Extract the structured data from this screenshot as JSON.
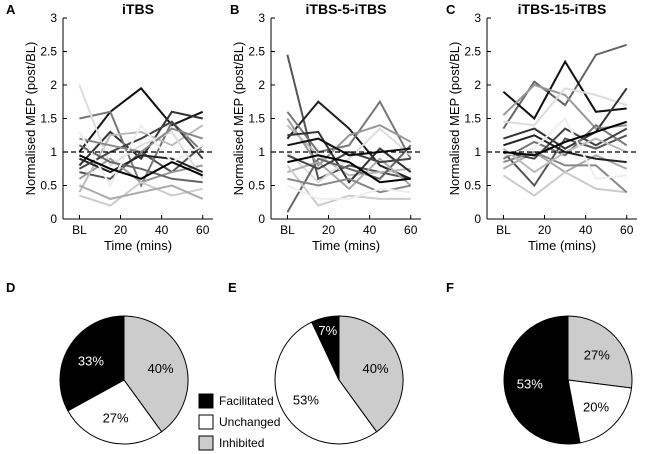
{
  "chart_data": {
    "line_panels": [
      {
        "letter": "A",
        "title": "iTBS",
        "type": "line",
        "xlabel": "Time (mins)",
        "ylabel": "Normalised MEP (post/BL)",
        "x": [
          0,
          15,
          30,
          45,
          60
        ],
        "x_ticks": [
          "BL",
          "20",
          "40",
          "60"
        ],
        "x_tick_values": [
          0,
          20,
          40,
          60
        ],
        "y_ticks": [
          "0",
          "0.5",
          "1",
          "1.5",
          "2",
          "2.5",
          "3"
        ],
        "y_tick_values": [
          0,
          0.5,
          1,
          1.5,
          2,
          2.5,
          3
        ],
        "xlim": [
          -8,
          65
        ],
        "ylim": [
          0,
          3
        ],
        "reference_line": 1,
        "series": [
          {
            "name": "s1",
            "color": "#111111",
            "values": [
              1.0,
              1.6,
              1.95,
              1.4,
              1.6
            ]
          },
          {
            "name": "s2",
            "color": "#333333",
            "values": [
              0.8,
              1.3,
              0.9,
              1.6,
              1.5
            ]
          },
          {
            "name": "s3",
            "color": "#555555",
            "values": [
              0.7,
              0.6,
              1.0,
              0.7,
              1.1
            ]
          },
          {
            "name": "s4",
            "color": "#777777",
            "values": [
              1.5,
              1.6,
              0.5,
              1.45,
              1.0
            ]
          },
          {
            "name": "s5",
            "color": "#999999",
            "values": [
              0.6,
              0.9,
              0.55,
              0.7,
              0.8
            ]
          },
          {
            "name": "s6",
            "color": "#bbbbbb",
            "values": [
              0.4,
              1.25,
              1.3,
              1.1,
              1.4
            ]
          },
          {
            "name": "s7",
            "color": "#cccccc",
            "values": [
              0.35,
              0.2,
              0.55,
              0.35,
              0.45
            ]
          },
          {
            "name": "s8",
            "color": "#dddddd",
            "values": [
              2.0,
              0.8,
              1.1,
              1.3,
              0.6
            ]
          },
          {
            "name": "s9",
            "color": "#222222",
            "values": [
              0.9,
              0.7,
              0.95,
              0.9,
              0.7
            ]
          },
          {
            "name": "s10",
            "color": "#666666",
            "values": [
              1.1,
              0.85,
              0.75,
              0.6,
              0.55
            ]
          },
          {
            "name": "s11",
            "color": "#aaaaaa",
            "values": [
              0.5,
              0.3,
              0.4,
              0.5,
              0.3
            ]
          },
          {
            "name": "s12",
            "color": "#444444",
            "values": [
              0.75,
              1.0,
              1.2,
              1.45,
              0.9
            ]
          },
          {
            "name": "s13",
            "color": "#888888",
            "values": [
              1.2,
              1.1,
              1.0,
              1.35,
              1.2
            ]
          },
          {
            "name": "s14",
            "color": "#eeeeee",
            "values": [
              1.3,
              0.5,
              1.4,
              0.85,
              1.1
            ]
          },
          {
            "name": "s15",
            "color": "#000000",
            "values": [
              0.95,
              0.75,
              0.6,
              0.85,
              0.65
            ]
          }
        ]
      },
      {
        "letter": "B",
        "title": "iTBS-5-iTBS",
        "type": "line",
        "xlabel": "Time (mins)",
        "ylabel": "Normalised MEP (post/BL)",
        "x": [
          0,
          15,
          30,
          45,
          60
        ],
        "x_ticks": [
          "BL",
          "20",
          "40",
          "60"
        ],
        "x_tick_values": [
          0,
          20,
          40,
          60
        ],
        "y_ticks": [
          "0",
          "0.5",
          "1",
          "1.5",
          "2",
          "2.5",
          "3"
        ],
        "y_tick_values": [
          0,
          0.5,
          1,
          1.5,
          2,
          2.5,
          3
        ],
        "xlim": [
          -8,
          65
        ],
        "ylim": [
          0,
          3
        ],
        "reference_line": 1,
        "series": [
          {
            "name": "s1",
            "color": "#555555",
            "values": [
              2.45,
              0.6,
              0.8,
              0.7,
              0.6
            ]
          },
          {
            "name": "s2",
            "color": "#222222",
            "values": [
              1.2,
              1.75,
              1.35,
              0.8,
              0.6
            ]
          },
          {
            "name": "s3",
            "color": "#777777",
            "values": [
              1.6,
              1.0,
              1.1,
              1.75,
              0.9
            ]
          },
          {
            "name": "s4",
            "color": "#999999",
            "values": [
              1.5,
              0.8,
              1.25,
              1.4,
              1.15
            ]
          },
          {
            "name": "s5",
            "color": "#bbbbbb",
            "values": [
              1.4,
              0.95,
              0.65,
              0.7,
              0.75
            ]
          },
          {
            "name": "s6",
            "color": "#dddddd",
            "values": [
              1.0,
              0.55,
              0.9,
              1.35,
              0.95
            ]
          },
          {
            "name": "s7",
            "color": "#333333",
            "values": [
              1.25,
              1.3,
              0.55,
              1.05,
              0.7
            ]
          },
          {
            "name": "s8",
            "color": "#666666",
            "values": [
              0.1,
              0.9,
              0.75,
              0.6,
              1.1
            ]
          },
          {
            "name": "s9",
            "color": "#aaaaaa",
            "values": [
              0.7,
              0.85,
              0.45,
              0.9,
              0.5
            ]
          },
          {
            "name": "s10",
            "color": "#cccccc",
            "values": [
              0.8,
              0.2,
              0.35,
              0.3,
              0.3
            ]
          },
          {
            "name": "s11",
            "color": "#444444",
            "values": [
              0.95,
              0.75,
              1.0,
              0.85,
              0.9
            ]
          },
          {
            "name": "s12",
            "color": "#888888",
            "values": [
              0.6,
              0.5,
              0.6,
              0.4,
              0.5
            ]
          },
          {
            "name": "s13",
            "color": "#111111",
            "values": [
              1.1,
              1.2,
              0.95,
              1.0,
              1.05
            ]
          },
          {
            "name": "s14",
            "color": "#eeeeee",
            "values": [
              0.5,
              0.3,
              0.3,
              0.45,
              0.4
            ]
          },
          {
            "name": "s15",
            "color": "#000000",
            "values": [
              0.85,
              0.95,
              0.85,
              0.55,
              0.6
            ]
          }
        ]
      },
      {
        "letter": "C",
        "title": "iTBS-15-iTBS",
        "type": "line",
        "xlabel": "Time (mins)",
        "ylabel": "Normalised MEP (post/BL)",
        "x": [
          0,
          15,
          30,
          45,
          60
        ],
        "x_ticks": [
          "BL",
          "20",
          "40",
          "60"
        ],
        "x_tick_values": [
          0,
          20,
          40,
          60
        ],
        "y_ticks": [
          "0",
          "0.5",
          "1",
          "1.5",
          "2",
          "2.5",
          "3"
        ],
        "y_tick_values": [
          0,
          0.5,
          1,
          1.5,
          2,
          2.5,
          3
        ],
        "xlim": [
          -8,
          65
        ],
        "ylim": [
          0,
          3
        ],
        "reference_line": 1,
        "series": [
          {
            "name": "s1",
            "color": "#666666",
            "values": [
              1.35,
              2.05,
              1.7,
              2.45,
              2.6
            ]
          },
          {
            "name": "s2",
            "color": "#111111",
            "values": [
              1.9,
              1.5,
              2.35,
              1.6,
              1.65
            ]
          },
          {
            "name": "s3",
            "color": "#999999",
            "values": [
              1.55,
              2.0,
              1.85,
              1.35,
              1.4
            ]
          },
          {
            "name": "s4",
            "color": "#dddddd",
            "values": [
              1.45,
              1.4,
              1.95,
              1.85,
              1.7
            ]
          },
          {
            "name": "s5",
            "color": "#333333",
            "values": [
              1.2,
              1.35,
              1.05,
              1.3,
              1.95
            ]
          },
          {
            "name": "s6",
            "color": "#555555",
            "values": [
              1.0,
              0.5,
              1.2,
              1.05,
              1.25
            ]
          },
          {
            "name": "s7",
            "color": "#777777",
            "values": [
              0.9,
              1.15,
              0.95,
              1.4,
              1.1
            ]
          },
          {
            "name": "s8",
            "color": "#aaaaaa",
            "values": [
              0.75,
              1.0,
              0.7,
              0.95,
              0.75
            ]
          },
          {
            "name": "s9",
            "color": "#cccccc",
            "values": [
              0.65,
              0.35,
              0.7,
              0.45,
              0.4
            ]
          },
          {
            "name": "s10",
            "color": "#444444",
            "values": [
              1.0,
              0.9,
              1.35,
              1.1,
              1.35
            ]
          },
          {
            "name": "s11",
            "color": "#888888",
            "values": [
              0.85,
              1.0,
              0.8,
              0.8,
              0.4
            ]
          },
          {
            "name": "s12",
            "color": "#bbbbbb",
            "values": [
              1.05,
              0.7,
              1.0,
              1.2,
              1.0
            ]
          },
          {
            "name": "s13",
            "color": "#222222",
            "values": [
              1.1,
              1.25,
              1.0,
              0.9,
              0.85
            ]
          },
          {
            "name": "s14",
            "color": "#eeeeee",
            "values": [
              0.95,
              1.05,
              1.5,
              0.6,
              0.65
            ]
          },
          {
            "name": "s15",
            "color": "#000000",
            "values": [
              1.0,
              0.95,
              1.15,
              1.3,
              1.45
            ]
          }
        ]
      }
    ],
    "pie_panels": [
      {
        "letter": "D",
        "type": "pie",
        "slices": [
          {
            "category": "Facilitated",
            "percent": 33,
            "label": "33%"
          },
          {
            "category": "Unchanged",
            "percent": 27,
            "label": "27%"
          },
          {
            "category": "Inhibited",
            "percent": 40,
            "label": "40%"
          }
        ]
      },
      {
        "letter": "E",
        "type": "pie",
        "slices": [
          {
            "category": "Facilitated",
            "percent": 7,
            "label": "7%"
          },
          {
            "category": "Unchanged",
            "percent": 53,
            "label": "53%"
          },
          {
            "category": "Inhibited",
            "percent": 40,
            "label": "40%"
          }
        ]
      },
      {
        "letter": "F",
        "type": "pie",
        "slices": [
          {
            "category": "Facilitated",
            "percent": 53,
            "label": "53%"
          },
          {
            "category": "Unchanged",
            "percent": 20,
            "label": "20%"
          },
          {
            "category": "Inhibited",
            "percent": 27,
            "label": "27%"
          }
        ]
      }
    ],
    "legend": [
      {
        "key": "Facilitated",
        "label": "Facilitated",
        "fill": "#000000",
        "text_color": "#ffffff"
      },
      {
        "key": "Unchanged",
        "label": "Unchanged",
        "fill": "#ffffff",
        "text_color": "#000000"
      },
      {
        "key": "Inhibited",
        "label": "Inhibited",
        "fill": "#cccccc",
        "text_color": "#000000"
      }
    ]
  }
}
